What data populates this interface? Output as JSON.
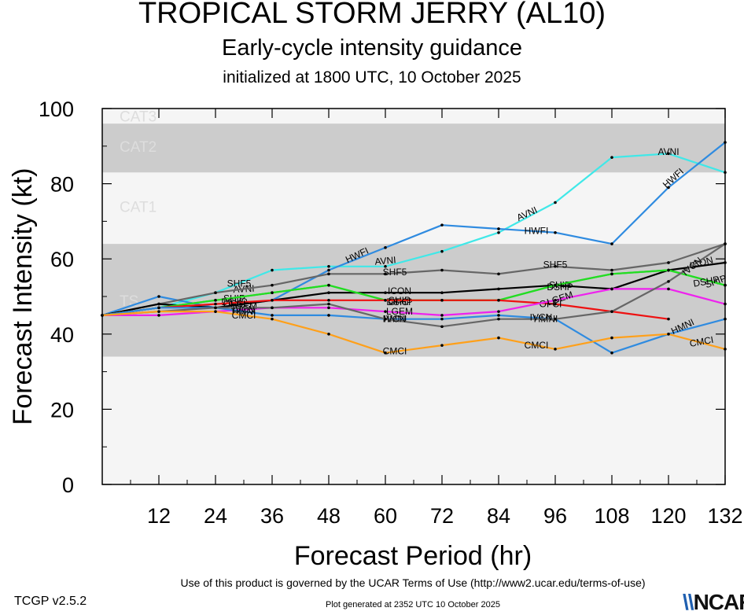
{
  "title": "TROPICAL STORM JERRY (AL10)",
  "subtitle": "Early-cycle intensity guidance",
  "init_text": "initialized at 1800 UTC, 10 October 2025",
  "footer": {
    "version": "TCGP v2.5.2",
    "terms": "Use of this product is governed by the UCAR Terms of Use (http://www2.ucar.edu/terms-of-use)",
    "generated": "Plot generated at 2352 UTC   10 October 2025",
    "logo": "NCAR"
  },
  "chart_data": {
    "type": "line",
    "title": "TROPICAL STORM JERRY (AL10)",
    "xlabel": "Forecast Period (hr)",
    "ylabel": "Forecast Intensity (kt)",
    "xlim": [
      0,
      132
    ],
    "ylim": [
      0,
      100
    ],
    "xticks": [
      12,
      24,
      36,
      48,
      60,
      72,
      84,
      96,
      108,
      120,
      132
    ],
    "yticks": [
      0,
      20,
      40,
      60,
      80,
      100
    ],
    "bands": [
      {
        "label": "TS",
        "y0": 34,
        "y1": 64,
        "color": "#cccccc",
        "label_y": 49
      },
      {
        "label": "CAT1",
        "y0": 64,
        "y1": 83,
        "color": "#f5f5f5",
        "label_y": 74
      },
      {
        "label": "CAT2",
        "y0": 83,
        "y1": 96,
        "color": "#cccccc",
        "label_y": 90
      },
      {
        "label": "CAT3",
        "y0": 96,
        "y1": 100,
        "color": "#f5f5f5",
        "label_y": 98
      }
    ],
    "band_label_color": "#dddddd",
    "series": [
      {
        "name": "AVNI",
        "color": "#40e8e8",
        "x": [
          0,
          12,
          24,
          36,
          48,
          60,
          72,
          84,
          96,
          108,
          120,
          132
        ],
        "y": [
          45,
          47,
          51,
          57,
          58,
          58,
          62,
          67,
          75,
          87,
          88,
          83
        ],
        "labels": [
          [
            30,
            52,
            -3
          ],
          [
            60,
            59.5,
            -5
          ],
          [
            90,
            72,
            -25
          ],
          [
            120,
            88.5,
            0
          ]
        ]
      },
      {
        "name": "HWFI",
        "color": "#2f8be0",
        "x": [
          0,
          12,
          24,
          36,
          48,
          60,
          72,
          84,
          96,
          108,
          120,
          132
        ],
        "y": [
          45,
          50,
          47,
          49,
          57,
          63,
          69,
          68,
          67,
          64,
          79,
          91
        ],
        "labels": [
          [
            54,
            61,
            -25
          ],
          [
            92,
            67.5,
            0
          ],
          [
            121,
            81.5,
            -42
          ]
        ]
      },
      {
        "name": "SHF5",
        "color": "#666666",
        "x": [
          0,
          12,
          24,
          36,
          48,
          60,
          72,
          84,
          96,
          108,
          120,
          132
        ],
        "y": [
          45,
          48,
          51,
          53,
          56,
          56,
          57,
          56,
          58,
          57,
          59,
          64
        ],
        "labels": [
          [
            29,
            53.5,
            0
          ],
          [
            62,
            56.5,
            0
          ],
          [
            96,
            58.5,
            0
          ]
        ]
      },
      {
        "name": "ICON",
        "color": "#000000",
        "x": [
          0,
          12,
          24,
          36,
          48,
          60,
          72,
          84,
          96,
          108,
          120,
          132
        ],
        "y": [
          45,
          48,
          47,
          49,
          51,
          51,
          51,
          52,
          53,
          52,
          57,
          59
        ],
        "labels": [
          [
            63,
            51.5,
            0
          ],
          [
            127,
            59,
            -15
          ]
        ]
      },
      {
        "name": "SHIP",
        "color": "#22dd22",
        "x": [
          0,
          12,
          24,
          36,
          48,
          60,
          72,
          84,
          96,
          108,
          120,
          132
        ],
        "y": [
          45,
          47,
          49,
          51,
          53,
          49,
          49,
          49,
          53,
          56,
          57,
          53
        ],
        "labels": [
          [
            28,
            49.5,
            0
          ],
          [
            63,
            49,
            0
          ],
          [
            97,
            53,
            0
          ],
          [
            130,
            54,
            -20
          ]
        ]
      },
      {
        "name": "DSHP",
        "color": "#22dd22",
        "x": [
          0,
          12,
          24,
          36,
          48,
          60,
          72,
          84,
          96,
          108,
          120,
          132
        ],
        "y": [
          45,
          47,
          49,
          51,
          53,
          49,
          49,
          49,
          53,
          56,
          57,
          53
        ],
        "labels": [
          [
            28,
            48.5,
            0
          ],
          [
            63,
            48.5,
            0
          ],
          [
            97,
            52.5,
            0
          ],
          [
            128,
            54,
            -10
          ]
        ]
      },
      {
        "name": "OFCI",
        "color": "#ee1111",
        "x": [
          0,
          12,
          24,
          36,
          48,
          60,
          72,
          84,
          96,
          108,
          120
        ],
        "y": [
          45,
          47,
          48,
          49,
          49,
          49,
          49,
          49,
          48,
          46,
          44
        ],
        "labels": [
          [
            28,
            48,
            0
          ],
          [
            63,
            48.5,
            0
          ],
          [
            95,
            48,
            0
          ]
        ]
      },
      {
        "name": "LGEM",
        "color": "#ee22ee",
        "x": [
          0,
          12,
          24,
          36,
          48,
          60,
          72,
          84,
          96,
          108,
          120,
          132
        ],
        "y": [
          45,
          45,
          46,
          47,
          47,
          46,
          45,
          46,
          49,
          52,
          52,
          48
        ],
        "labels": [
          [
            30,
            47.5,
            0
          ],
          [
            63,
            46,
            0
          ],
          [
            97,
            49.5,
            -18
          ]
        ]
      },
      {
        "name": "HMNI",
        "color": "#2f8be0",
        "x": [
          0,
          12,
          24,
          36,
          48,
          60,
          72,
          84,
          96,
          108,
          120,
          132
        ],
        "y": [
          45,
          47,
          47,
          45,
          45,
          44,
          44,
          45,
          44,
          35,
          40,
          44
        ],
        "labels": [
          [
            30,
            46,
            0
          ],
          [
            62,
            44,
            0
          ],
          [
            94,
            44,
            0
          ],
          [
            123,
            42,
            -25
          ]
        ]
      },
      {
        "name": "IVCN",
        "color": "#666666",
        "x": [
          0,
          12,
          24,
          36,
          48,
          60,
          72,
          84,
          96,
          108,
          120,
          132
        ],
        "y": [
          45,
          46,
          47,
          47,
          48,
          44,
          42,
          44,
          44,
          46,
          54,
          64
        ],
        "labels": [
          [
            30,
            46.5,
            0
          ],
          [
            62,
            44,
            0
          ],
          [
            93,
            44.5,
            0
          ],
          [
            125,
            58,
            -40
          ]
        ]
      },
      {
        "name": "CMCI",
        "color": "#ffa01a",
        "x": [
          0,
          12,
          24,
          36,
          48,
          60,
          72,
          84,
          96,
          108,
          120,
          132
        ],
        "y": [
          45,
          46,
          46,
          44,
          40,
          35,
          37,
          39,
          36,
          39,
          40,
          36
        ],
        "labels": [
          [
            30,
            45,
            0
          ],
          [
            62,
            35.5,
            0
          ],
          [
            92,
            37,
            0
          ],
          [
            127,
            38,
            -10
          ]
        ]
      }
    ]
  }
}
